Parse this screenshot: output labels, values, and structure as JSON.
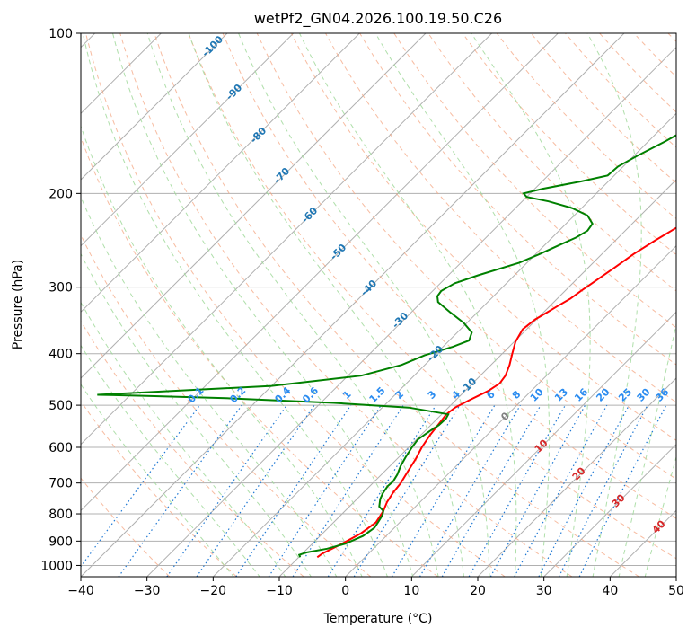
{
  "chart_data": {
    "type": "line",
    "title": "wetPf2_GN04.2026.100.19.50.C26",
    "xlabel": "Temperature (°C)",
    "ylabel": "Pressure (hPa)",
    "xlim": [
      -40,
      50
    ],
    "ylim": [
      1050,
      100
    ],
    "x_ticks": [
      -40,
      -30,
      -20,
      -10,
      0,
      10,
      20,
      30,
      40,
      50
    ],
    "x_tick_labels": [
      "−40",
      "−30",
      "−20",
      "−10",
      "0",
      "10",
      "20",
      "30",
      "40",
      "50"
    ],
    "y_ticks": [
      1000,
      900,
      800,
      700,
      600,
      500,
      400,
      300,
      200,
      100
    ],
    "y_tick_labels": [
      "1000",
      "900",
      "800",
      "700",
      "600",
      "500",
      "400",
      "300",
      "200",
      "100"
    ],
    "y_scale": "log",
    "skew_deg": 45,
    "colors": {
      "temperature": "#ff0000",
      "dewpoint": "#008000",
      "isotherm": "#b0b0b0",
      "dry_adiabat": "#f4a582",
      "moist_adiabat": "#a1d99b",
      "mixing_ratio": "#1f78d4",
      "dry_label": "#d62728",
      "moist_label": "#1f77b4",
      "mixing_label": "#2b8cf0",
      "zero_label": "#7f7f7f"
    },
    "series": [
      {
        "name": "Temperature",
        "points": [
          [
            -7.2,
            965
          ],
          [
            -7.0,
            950
          ],
          [
            -5.5,
            910
          ],
          [
            -4.2,
            870
          ],
          [
            -3.6,
            830
          ],
          [
            -4.2,
            790
          ],
          [
            -5.0,
            760
          ],
          [
            -5.5,
            730
          ],
          [
            -5.8,
            700
          ],
          [
            -6.5,
            665
          ],
          [
            -7.2,
            630
          ],
          [
            -8.0,
            600
          ],
          [
            -8.6,
            570
          ],
          [
            -9.0,
            540
          ],
          [
            -9.3,
            520
          ],
          [
            -9.0,
            505
          ],
          [
            -8.0,
            490
          ],
          [
            -6.5,
            470
          ],
          [
            -5.9,
            455
          ],
          [
            -6.2,
            440
          ],
          [
            -7.2,
            420
          ],
          [
            -8.5,
            400
          ],
          [
            -9.8,
            380
          ],
          [
            -10.6,
            360
          ],
          [
            -10.2,
            345
          ],
          [
            -9.5,
            335
          ],
          [
            -8.8,
            325
          ],
          [
            -8.0,
            315
          ],
          [
            -7.6,
            305
          ],
          [
            -6.8,
            290
          ],
          [
            -6.0,
            275
          ],
          [
            -5.2,
            260
          ],
          [
            -4.0,
            245
          ],
          [
            -2.5,
            230
          ],
          [
            -0.5,
            215
          ],
          [
            1.5,
            205
          ],
          [
            3.0,
            197
          ],
          [
            4.2,
            188
          ],
          [
            5.0,
            180
          ],
          [
            6.3,
            170
          ],
          [
            8.0,
            160
          ],
          [
            10.0,
            150
          ],
          [
            12.5,
            140
          ],
          [
            14.3,
            133
          ],
          [
            15.6,
            127
          ],
          [
            16.6,
            120
          ],
          [
            17.0,
            115
          ],
          [
            18.0,
            110
          ],
          [
            19.5,
            105
          ],
          [
            20.6,
            100
          ]
        ]
      },
      {
        "name": "Dewpoint",
        "points": [
          [
            -9.8,
            965
          ],
          [
            -10.3,
            955
          ],
          [
            -9.5,
            945
          ],
          [
            -7.0,
            930
          ],
          [
            -5.0,
            910
          ],
          [
            -3.5,
            880
          ],
          [
            -3.0,
            850
          ],
          [
            -3.3,
            830
          ],
          [
            -3.7,
            805
          ],
          [
            -4.2,
            790
          ],
          [
            -5.5,
            775
          ],
          [
            -6.5,
            750
          ],
          [
            -7.0,
            730
          ],
          [
            -7.3,
            710
          ],
          [
            -7.2,
            695
          ],
          [
            -7.6,
            675
          ],
          [
            -8.4,
            650
          ],
          [
            -9.0,
            625
          ],
          [
            -9.5,
            600
          ],
          [
            -9.8,
            580
          ],
          [
            -9.3,
            560
          ],
          [
            -8.8,
            545
          ],
          [
            -8.7,
            530
          ],
          [
            -9.0,
            520
          ],
          [
            -16.0,
            505
          ],
          [
            -28.0,
            495
          ],
          [
            -45.0,
            485
          ],
          [
            -58.0,
            480
          ],
          [
            -65,
            478
          ],
          [
            -40,
            460
          ],
          [
            -28,
            440
          ],
          [
            -23.5,
            420
          ],
          [
            -21.5,
            403
          ],
          [
            -18.5,
            388
          ],
          [
            -17.0,
            378
          ],
          [
            -17.8,
            365
          ],
          [
            -20.5,
            350
          ],
          [
            -24.0,
            335
          ],
          [
            -27.5,
            320
          ],
          [
            -28.5,
            312
          ],
          [
            -28.7,
            305
          ],
          [
            -27.8,
            295
          ],
          [
            -25.5,
            285
          ],
          [
            -21.2,
            270
          ],
          [
            -19.4,
            260
          ],
          [
            -17.8,
            250
          ],
          [
            -16.4,
            242
          ],
          [
            -15.7,
            235
          ],
          [
            -16.0,
            228
          ],
          [
            -18.0,
            220
          ],
          [
            -21.5,
            213
          ],
          [
            -26.0,
            207
          ],
          [
            -30.0,
            203
          ],
          [
            -31.0,
            200
          ],
          [
            -28.8,
            196
          ],
          [
            -24.2,
            190
          ],
          [
            -21.0,
            185
          ],
          [
            -20.8,
            178
          ],
          [
            -19.5,
            170
          ],
          [
            -17.5,
            160
          ],
          [
            -15.7,
            150
          ],
          [
            -14.9,
            140
          ],
          [
            -14.6,
            130
          ],
          [
            -13.8,
            125
          ],
          [
            -12.5,
            120
          ],
          [
            -11.0,
            115
          ],
          [
            -9.0,
            110
          ],
          [
            -6.8,
            105
          ],
          [
            -5.0,
            100
          ]
        ]
      }
    ],
    "annotations": {
      "moist_adiabat_labels": [
        "-100",
        "-90",
        "-80",
        "-70",
        "-60",
        "-50",
        "-40",
        "-30",
        "-20",
        "-10"
      ],
      "mixing_ratio_labels": [
        "0.1",
        "0.2",
        "0.4",
        "0.6",
        "1",
        "1.5",
        "2",
        "3",
        "4",
        "6",
        "8",
        "10",
        "13",
        "16",
        "20",
        "25",
        "30",
        "36"
      ],
      "dry_adiabat_labels": [
        "0",
        "10",
        "20",
        "30",
        "40"
      ]
    },
    "grid": true
  }
}
